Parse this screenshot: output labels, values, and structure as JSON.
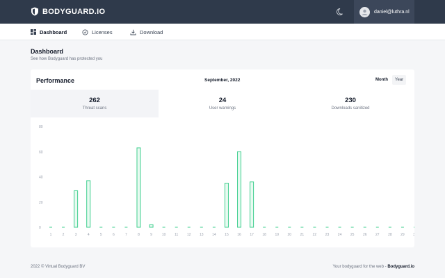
{
  "header": {
    "brand": "BODYGUARD.IO",
    "user_email": "daniel@luthra.nl"
  },
  "nav": {
    "items": [
      {
        "label": "Dashboard"
      },
      {
        "label": "Licenses"
      },
      {
        "label": "Download"
      }
    ]
  },
  "page": {
    "title": "Dashboard",
    "subtitle": "See how Bodyguard has protected you"
  },
  "performance": {
    "title": "Performance",
    "period": "September, 2022",
    "toggle": {
      "month": "Month",
      "year": "Year"
    },
    "stats": [
      {
        "value": "262",
        "label": "Threat scans"
      },
      {
        "value": "24",
        "label": "User warnings"
      },
      {
        "value": "230",
        "label": "Downloads sanitized"
      }
    ]
  },
  "chart_data": {
    "type": "bar",
    "categories": [
      "1",
      "2",
      "3",
      "4",
      "5",
      "6",
      "7",
      "8",
      "9",
      "10",
      "11",
      "12",
      "13",
      "14",
      "15",
      "16",
      "17",
      "18",
      "19",
      "20",
      "21",
      "22",
      "23",
      "24",
      "25",
      "26",
      "27",
      "28",
      "29",
      "30"
    ],
    "values": [
      0,
      0,
      29,
      37,
      0,
      0,
      0,
      63,
      2,
      0,
      0,
      0,
      0,
      0,
      35,
      60,
      36,
      0,
      0,
      0,
      0,
      0,
      0,
      0,
      0,
      0,
      0,
      0,
      0,
      0
    ],
    "yticks": [
      0,
      20,
      40,
      60,
      80
    ],
    "ylim": [
      0,
      80
    ],
    "colors": {
      "bar_stroke": "#3ecf8e",
      "bar_fill": "#e8faf1",
      "tick_text": "#9ca3af"
    }
  },
  "footer": {
    "left": "2022 © Virtual Bodyguard BV",
    "right_prefix": "Your bodyguard for the web - ",
    "right_link": "Bodyguard.io"
  }
}
